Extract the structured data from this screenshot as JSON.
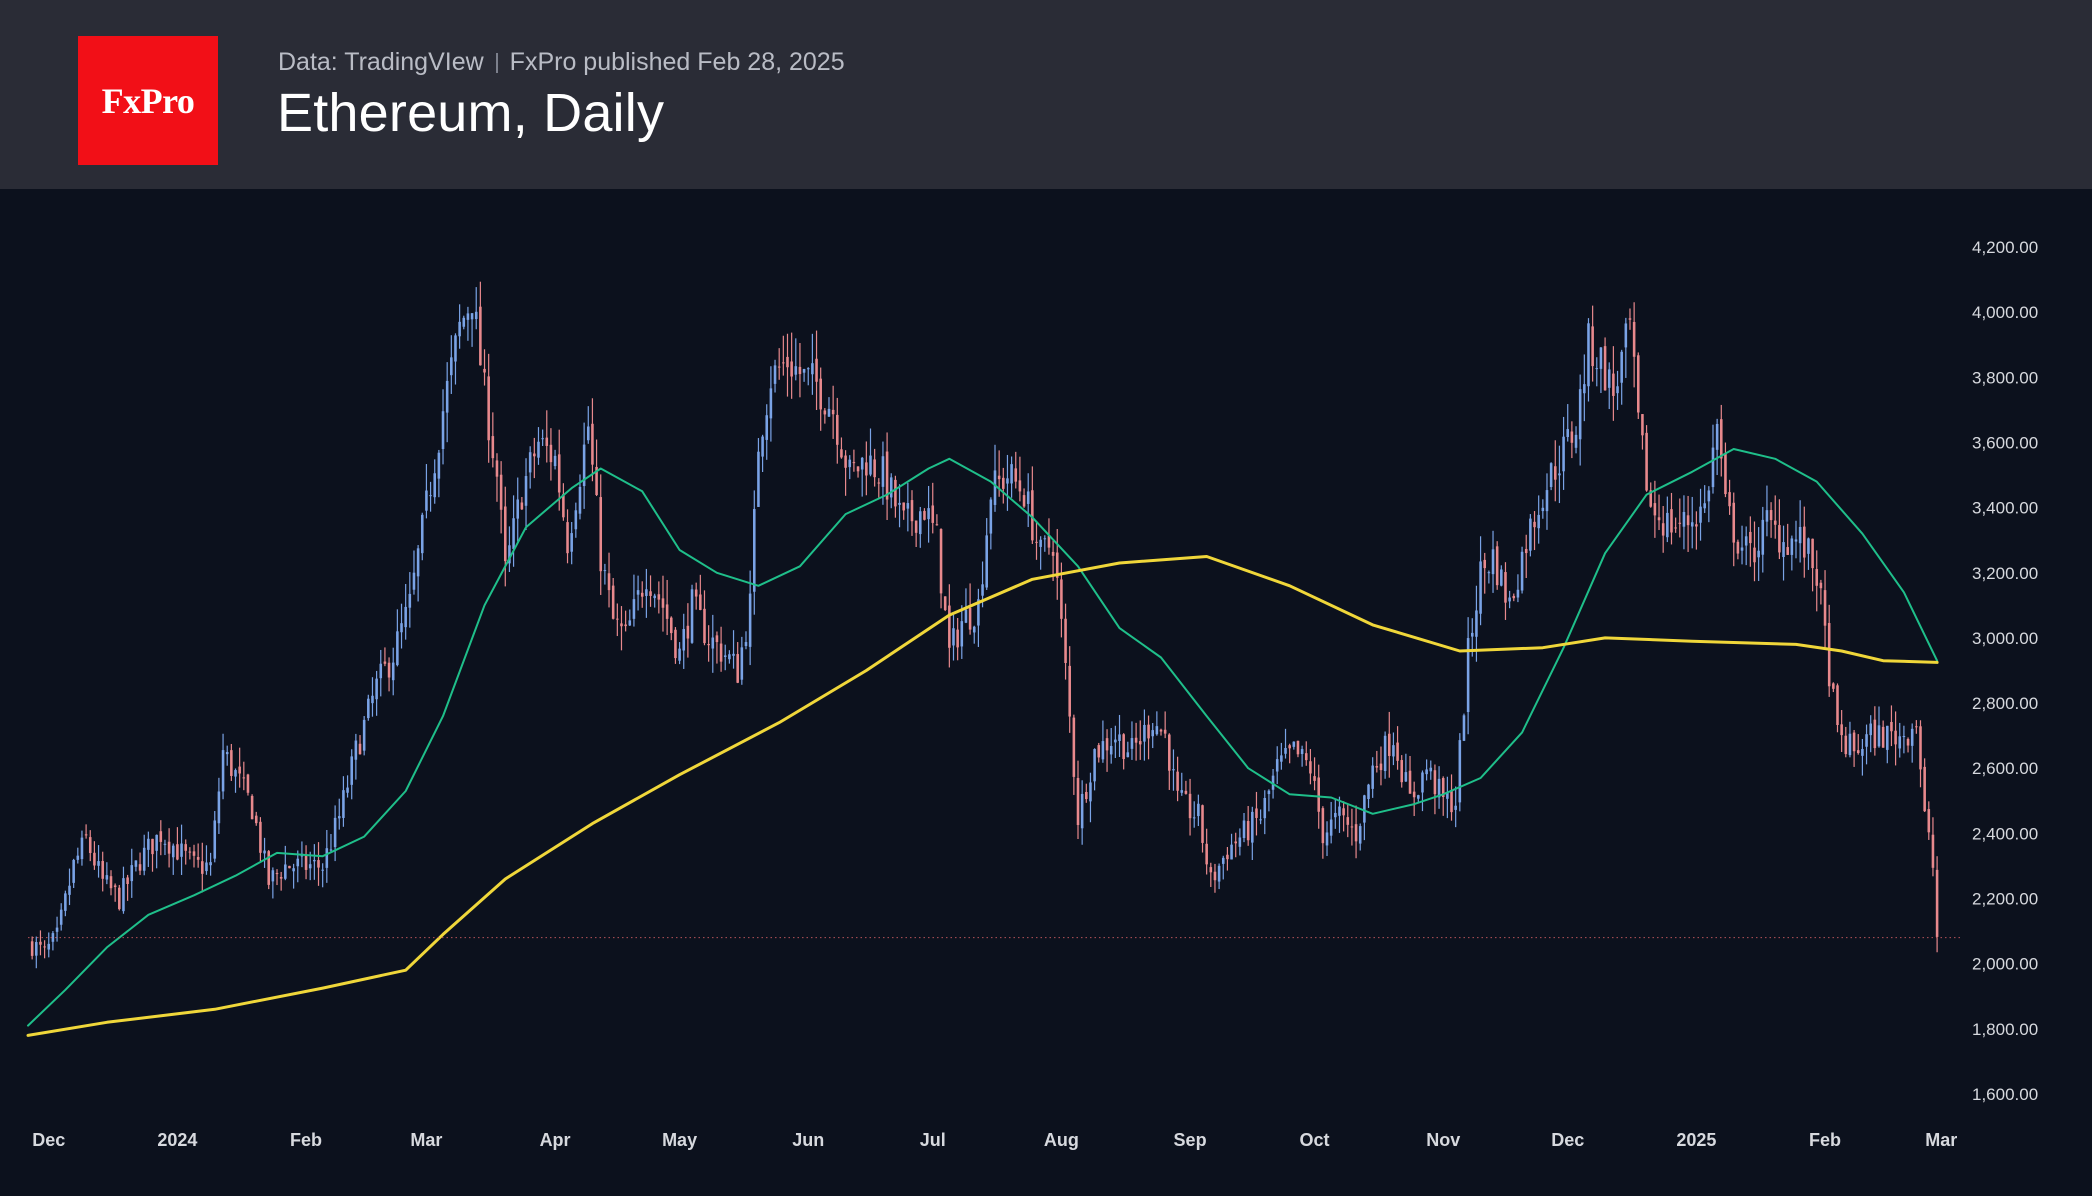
{
  "header": {
    "logo": "FxPro",
    "source": "Data: TradingVIew",
    "publisher": "FxPro published Feb 28, 2025"
  },
  "chart_data": {
    "type": "candlestick",
    "title": "Ethereum, Daily",
    "ylim": [
      1500,
      4350
    ],
    "x_range": [
      "2023-11-26",
      "2025-03-06"
    ],
    "y_ticks": [
      "4,200.00",
      "4,000.00",
      "3,800.00",
      "3,600.00",
      "3,400.00",
      "3,200.00",
      "3,000.00",
      "2,800.00",
      "2,600.00",
      "2,400.00",
      "2,200.00",
      "2,000.00",
      "1,800.00",
      "1,600.00"
    ],
    "x_ticks": [
      {
        "label": "Dec",
        "date": "2023-12-01"
      },
      {
        "label": "2024",
        "date": "2024-01-01"
      },
      {
        "label": "Feb",
        "date": "2024-02-01"
      },
      {
        "label": "Mar",
        "date": "2024-03-01"
      },
      {
        "label": "Apr",
        "date": "2024-04-01"
      },
      {
        "label": "May",
        "date": "2024-05-01"
      },
      {
        "label": "Jun",
        "date": "2024-06-01"
      },
      {
        "label": "Jul",
        "date": "2024-07-01"
      },
      {
        "label": "Aug",
        "date": "2024-08-01"
      },
      {
        "label": "Sep",
        "date": "2024-09-01"
      },
      {
        "label": "Oct",
        "date": "2024-10-01"
      },
      {
        "label": "Nov",
        "date": "2024-11-01"
      },
      {
        "label": "Dec",
        "date": "2024-12-01"
      },
      {
        "label": "2025",
        "date": "2025-01-01"
      },
      {
        "label": "Feb",
        "date": "2025-02-01"
      },
      {
        "label": "Mar",
        "date": "2025-03-01"
      }
    ],
    "close_path": [
      [
        "2023-11-27",
        2060
      ],
      [
        "2023-11-30",
        2030
      ],
      [
        "2023-12-03",
        2080
      ],
      [
        "2023-12-07",
        2300
      ],
      [
        "2023-12-10",
        2380
      ],
      [
        "2023-12-14",
        2250
      ],
      [
        "2023-12-18",
        2200
      ],
      [
        "2023-12-23",
        2320
      ],
      [
        "2023-12-28",
        2400
      ],
      [
        "2024-01-01",
        2350
      ],
      [
        "2024-01-05",
        2300
      ],
      [
        "2024-01-09",
        2300
      ],
      [
        "2024-01-12",
        2650
      ],
      [
        "2024-01-15",
        2580
      ],
      [
        "2024-01-19",
        2480
      ],
      [
        "2024-01-23",
        2250
      ],
      [
        "2024-01-27",
        2300
      ],
      [
        "2024-02-01",
        2300
      ],
      [
        "2024-02-05",
        2300
      ],
      [
        "2024-02-09",
        2450
      ],
      [
        "2024-02-13",
        2650
      ],
      [
        "2024-02-18",
        2850
      ],
      [
        "2024-02-22",
        2950
      ],
      [
        "2024-02-26",
        3100
      ],
      [
        "2024-03-01",
        3400
      ],
      [
        "2024-03-05",
        3700
      ],
      [
        "2024-03-09",
        3950
      ],
      [
        "2024-03-12",
        4050
      ],
      [
        "2024-03-15",
        3750
      ],
      [
        "2024-03-18",
        3500
      ],
      [
        "2024-03-20",
        3200
      ],
      [
        "2024-03-24",
        3450
      ],
      [
        "2024-03-28",
        3600
      ],
      [
        "2024-04-01",
        3550
      ],
      [
        "2024-04-04",
        3300
      ],
      [
        "2024-04-09",
        3650
      ],
      [
        "2024-04-12",
        3250
      ],
      [
        "2024-04-15",
        3050
      ],
      [
        "2024-04-18",
        3000
      ],
      [
        "2024-04-23",
        3200
      ],
      [
        "2024-04-27",
        3100
      ],
      [
        "2024-05-01",
        2950
      ],
      [
        "2024-05-04",
        3100
      ],
      [
        "2024-05-08",
        3000
      ],
      [
        "2024-05-12",
        2950
      ],
      [
        "2024-05-15",
        2900
      ],
      [
        "2024-05-18",
        3100
      ],
      [
        "2024-05-20",
        3600
      ],
      [
        "2024-05-23",
        3800
      ],
      [
        "2024-05-27",
        3850
      ],
      [
        "2024-05-31",
        3800
      ],
      [
        "2024-06-03",
        3780
      ],
      [
        "2024-06-07",
        3700
      ],
      [
        "2024-06-11",
        3500
      ],
      [
        "2024-06-15",
        3550
      ],
      [
        "2024-06-19",
        3500
      ],
      [
        "2024-06-24",
        3350
      ],
      [
        "2024-06-29",
        3400
      ],
      [
        "2024-07-02",
        3300
      ],
      [
        "2024-07-05",
        2950
      ],
      [
        "2024-07-08",
        3050
      ],
      [
        "2024-07-12",
        3100
      ],
      [
        "2024-07-15",
        3450
      ],
      [
        "2024-07-19",
        3500
      ],
      [
        "2024-07-23",
        3450
      ],
      [
        "2024-07-27",
        3250
      ],
      [
        "2024-07-30",
        3300
      ],
      [
        "2024-08-02",
        2900
      ],
      [
        "2024-08-05",
        2450
      ],
      [
        "2024-08-09",
        2650
      ],
      [
        "2024-08-14",
        2700
      ],
      [
        "2024-08-18",
        2650
      ],
      [
        "2024-08-23",
        2750
      ],
      [
        "2024-08-26",
        2700
      ],
      [
        "2024-08-29",
        2500
      ],
      [
        "2024-09-03",
        2450
      ],
      [
        "2024-09-06",
        2250
      ],
      [
        "2024-09-10",
        2350
      ],
      [
        "2024-09-14",
        2400
      ],
      [
        "2024-09-18",
        2450
      ],
      [
        "2024-09-22",
        2600
      ],
      [
        "2024-09-26",
        2650
      ],
      [
        "2024-09-30",
        2600
      ],
      [
        "2024-10-03",
        2400
      ],
      [
        "2024-10-07",
        2450
      ],
      [
        "2024-10-11",
        2400
      ],
      [
        "2024-10-15",
        2600
      ],
      [
        "2024-10-20",
        2700
      ],
      [
        "2024-10-24",
        2500
      ],
      [
        "2024-10-28",
        2600
      ],
      [
        "2024-11-01",
        2500
      ],
      [
        "2024-11-04",
        2500
      ],
      [
        "2024-11-07",
        2950
      ],
      [
        "2024-11-10",
        3200
      ],
      [
        "2024-11-13",
        3250
      ],
      [
        "2024-11-17",
        3100
      ],
      [
        "2024-11-21",
        3300
      ],
      [
        "2024-11-25",
        3450
      ],
      [
        "2024-11-29",
        3550
      ],
      [
        "2024-12-03",
        3650
      ],
      [
        "2024-12-06",
        3900
      ],
      [
        "2024-12-09",
        3850
      ],
      [
        "2024-12-12",
        3750
      ],
      [
        "2024-12-16",
        3950
      ],
      [
        "2024-12-18",
        3650
      ],
      [
        "2024-12-21",
        3400
      ],
      [
        "2024-12-25",
        3350
      ],
      [
        "2024-12-29",
        3350
      ],
      [
        "2025-01-03",
        3400
      ],
      [
        "2025-01-06",
        3650
      ],
      [
        "2025-01-08",
        3400
      ],
      [
        "2025-01-11",
        3300
      ],
      [
        "2025-01-14",
        3250
      ],
      [
        "2025-01-18",
        3350
      ],
      [
        "2025-01-22",
        3300
      ],
      [
        "2025-01-26",
        3300
      ],
      [
        "2025-01-30",
        3200
      ],
      [
        "2025-02-02",
        2900
      ],
      [
        "2025-02-04",
        2700
      ],
      [
        "2025-02-08",
        2650
      ],
      [
        "2025-02-12",
        2700
      ],
      [
        "2025-02-16",
        2700
      ],
      [
        "2025-02-20",
        2700
      ],
      [
        "2025-02-23",
        2750
      ],
      [
        "2025-02-25",
        2450
      ],
      [
        "2025-02-27",
        2300
      ],
      [
        "2025-02-28",
        2080
      ]
    ],
    "series": [
      {
        "type": "moving-average",
        "color": "#1fbf8a",
        "values": [
          [
            "2023-11-26",
            1810
          ],
          [
            "2023-12-05",
            1920
          ],
          [
            "2023-12-15",
            2050
          ],
          [
            "2023-12-25",
            2150
          ],
          [
            "2024-01-05",
            2210
          ],
          [
            "2024-01-15",
            2270
          ],
          [
            "2024-01-25",
            2340
          ],
          [
            "2024-02-05",
            2330
          ],
          [
            "2024-02-15",
            2390
          ],
          [
            "2024-02-25",
            2530
          ],
          [
            "2024-03-05",
            2760
          ],
          [
            "2024-03-15",
            3100
          ],
          [
            "2024-03-25",
            3340
          ],
          [
            "2024-04-05",
            3460
          ],
          [
            "2024-04-12",
            3520
          ],
          [
            "2024-04-22",
            3450
          ],
          [
            "2024-05-01",
            3270
          ],
          [
            "2024-05-10",
            3200
          ],
          [
            "2024-05-20",
            3160
          ],
          [
            "2024-05-30",
            3220
          ],
          [
            "2024-06-10",
            3380
          ],
          [
            "2024-06-20",
            3440
          ],
          [
            "2024-06-30",
            3520
          ],
          [
            "2024-07-05",
            3550
          ],
          [
            "2024-07-15",
            3480
          ],
          [
            "2024-07-25",
            3370
          ],
          [
            "2024-08-05",
            3220
          ],
          [
            "2024-08-15",
            3030
          ],
          [
            "2024-08-25",
            2940
          ],
          [
            "2024-09-05",
            2760
          ],
          [
            "2024-09-15",
            2600
          ],
          [
            "2024-09-25",
            2520
          ],
          [
            "2024-10-05",
            2510
          ],
          [
            "2024-10-15",
            2460
          ],
          [
            "2024-10-25",
            2490
          ],
          [
            "2024-11-01",
            2520
          ],
          [
            "2024-11-10",
            2570
          ],
          [
            "2024-11-20",
            2710
          ],
          [
            "2024-11-30",
            2970
          ],
          [
            "2024-12-10",
            3260
          ],
          [
            "2024-12-20",
            3440
          ],
          [
            "2024-12-31",
            3510
          ],
          [
            "2025-01-10",
            3580
          ],
          [
            "2025-01-20",
            3550
          ],
          [
            "2025-01-30",
            3480
          ],
          [
            "2025-02-10",
            3320
          ],
          [
            "2025-02-20",
            3140
          ],
          [
            "2025-02-28",
            2930
          ]
        ]
      },
      {
        "type": "moving-average",
        "color": "#f0d73a",
        "values": [
          [
            "2023-11-26",
            1780
          ],
          [
            "2023-12-15",
            1820
          ],
          [
            "2024-01-10",
            1860
          ],
          [
            "2024-02-05",
            1925
          ],
          [
            "2024-02-25",
            1980
          ],
          [
            "2024-03-05",
            2090
          ],
          [
            "2024-03-20",
            2260
          ],
          [
            "2024-04-10",
            2430
          ],
          [
            "2024-05-01",
            2580
          ],
          [
            "2024-05-25",
            2740
          ],
          [
            "2024-06-15",
            2900
          ],
          [
            "2024-07-05",
            3070
          ],
          [
            "2024-07-25",
            3180
          ],
          [
            "2024-08-15",
            3230
          ],
          [
            "2024-09-05",
            3250
          ],
          [
            "2024-09-25",
            3160
          ],
          [
            "2024-10-15",
            3040
          ],
          [
            "2024-11-05",
            2960
          ],
          [
            "2024-11-25",
            2970
          ],
          [
            "2024-12-10",
            3000
          ],
          [
            "2024-12-31",
            2990
          ],
          [
            "2025-01-25",
            2980
          ],
          [
            "2025-02-05",
            2960
          ],
          [
            "2025-02-15",
            2930
          ],
          [
            "2025-02-28",
            2925
          ]
        ]
      }
    ],
    "last_price": 2080,
    "grid": false
  }
}
